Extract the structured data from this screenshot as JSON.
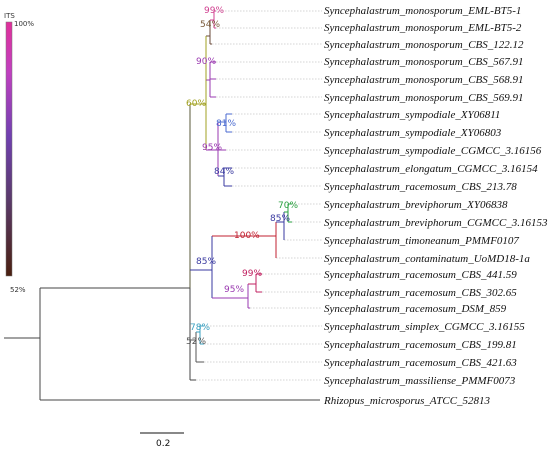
{
  "legend": {
    "title": "ITS",
    "max_label": "100%",
    "min_label": "52%",
    "gradient_colors": [
      "#c8d400",
      "#e060c8",
      "#a04fc8",
      "#6050b0",
      "#7a4a3a",
      "#402010"
    ]
  },
  "taxa": [
    "Syncephalastrum_monosporum_EML-BT5-1",
    "Syncephalastrum_monosporum_EML-BT5-2",
    "Syncephalastrum_monosporum_CBS_122.12",
    "Syncephalastrum_monosporum_CBS_567.91",
    "Syncephalastrum_monosporum_CBS_568.91",
    "Syncephalastrum_monosporum_CBS_569.91",
    "Syncephalastrum_sympodiale_XY06811",
    "Syncephalastrum_sympodiale_XY06803",
    "Syncephalastrum_sympodiale_CGMCC_3.16156",
    "Syncephalastrum_elongatum_CGMCC_3.16154",
    "Syncephalastrum_racemosum_CBS_213.78",
    "Syncephalastrum_breviphorum_XY06838",
    "Syncephalastrum_breviphorum_CGMCC_3.16153",
    "Syncephalastrum_timoneanum_PMMF0107",
    "Syncephalastrum_contaminatum_UoMD18-1a",
    "Syncephalastrum_racemosum_CBS_441.59",
    "Syncephalastrum_racemosum_CBS_302.65",
    "Syncephalastrum_racemosum_DSM_859",
    "Syncephalastrum_simplex_CGMCC_3.16155",
    "Syncephalastrum_racemosum_CBS_199.81",
    "Syncephalastrum_racemosum_CBS_421.63",
    "Syncephalastrum_massiliense_PMMF0073",
    "Rhizopus_microsporus_ATCC_52813"
  ],
  "support_labels": [
    {
      "text": "99%",
      "color": "#d04090"
    },
    {
      "text": "54%",
      "color": "#7a5a3a"
    },
    {
      "text": "90%",
      "color": "#9a3ab0"
    },
    {
      "text": "60%",
      "color": "#a0a020"
    },
    {
      "text": "81%",
      "color": "#4a6ad0"
    },
    {
      "text": "95%",
      "color": "#9a3ab0"
    },
    {
      "text": "84%",
      "color": "#3a3aa0"
    },
    {
      "text": "70%",
      "color": "#2aa040"
    },
    {
      "text": "85%",
      "color": "#3a3aa0"
    },
    {
      "text": "100%",
      "color": "#c02030"
    },
    {
      "text": "85%",
      "color": "#3a3aa0"
    },
    {
      "text": "99%",
      "color": "#c02060"
    },
    {
      "text": "95%",
      "color": "#9a3ab0"
    },
    {
      "text": "78%",
      "color": "#3aa0c0"
    },
    {
      "text": "52%",
      "color": "#555555"
    }
  ],
  "scale_bar": {
    "label": "0.2"
  }
}
